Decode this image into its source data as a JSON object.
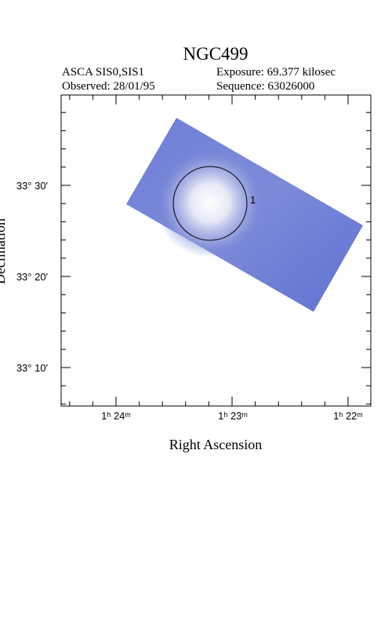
{
  "header": {
    "title": "NGC499",
    "instrument": "ASCA SIS0,SIS1",
    "exposure": "Exposure: 69.377 kilosec",
    "observed": "Observed: 28/01/95",
    "sequence": "Sequence: 63026000"
  },
  "axes": {
    "x_label": "Right Ascension",
    "y_label": "Declination",
    "x_ticks": [
      "1ʰ 24ᵐ",
      "1ʰ 23ᵐ",
      "1ʰ 22ᵐ"
    ],
    "y_ticks": [
      "33° 30′",
      "33° 20′",
      "33° 10′"
    ]
  },
  "regions": [
    {
      "label": "1"
    }
  ]
}
